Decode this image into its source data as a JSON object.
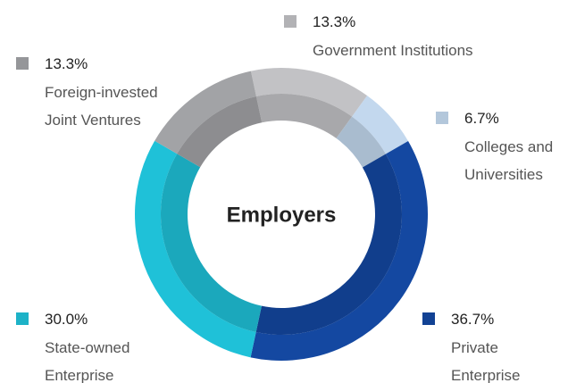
{
  "chart_data": {
    "type": "donut",
    "title": "Employers",
    "categories": [
      "Government Institutions",
      "Colleges and Universities",
      "Private Enterprise",
      "State-owned Enterprise",
      "Foreign-invested Joint Ventures"
    ],
    "values": [
      13.3,
      6.7,
      36.7,
      30.0,
      13.3
    ],
    "value_labels": [
      "13.3%",
      "6.7%",
      "36.7%",
      "30.0%",
      "13.3%"
    ],
    "colors": [
      "#c2c2c5",
      "#c3d8ee",
      "#1448a1",
      "#1fc1d8",
      "#a2a3a6"
    ]
  }
}
